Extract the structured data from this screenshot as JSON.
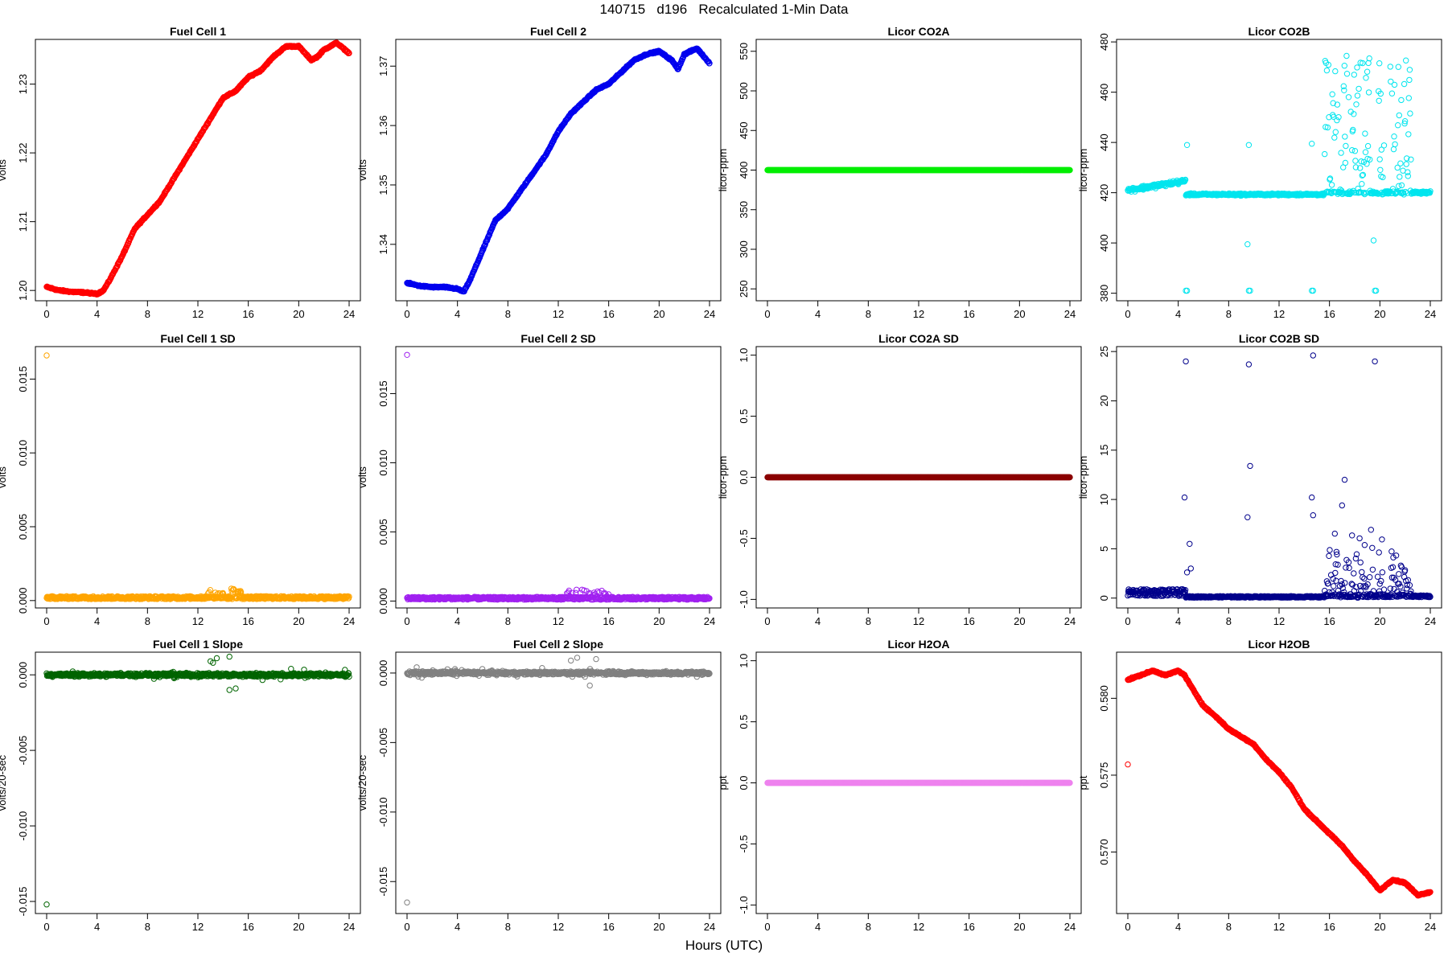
{
  "figure": {
    "title": "140715   d196   Recalculated 1-Min Data",
    "xlabel": "Hours (UTC)"
  },
  "chart_data": [
    {
      "type": "scatter",
      "title": "Fuel Cell 1",
      "ylabel": "volts",
      "color": "#ff0000",
      "xlim": [
        0,
        24
      ],
      "xticks": [
        0,
        4,
        8,
        12,
        16,
        20,
        24
      ],
      "ylim": [
        1.1985,
        1.2365
      ],
      "yticks": [
        1.2,
        1.21,
        1.22,
        1.23
      ],
      "ytick_labels": [
        "1.20",
        "1.21",
        "1.22",
        "1.23"
      ],
      "pattern": "trend",
      "x": [
        0,
        1,
        2,
        3,
        4,
        4.5,
        5,
        6,
        7,
        8,
        9,
        10,
        11,
        12,
        13,
        14,
        15,
        16,
        17,
        18,
        19,
        20,
        21,
        21.5,
        22,
        23,
        24
      ],
      "y": [
        1.2005,
        1.2,
        1.1998,
        1.1997,
        1.1995,
        1.2,
        1.2015,
        1.205,
        1.209,
        1.211,
        1.213,
        1.216,
        1.219,
        1.222,
        1.225,
        1.228,
        1.229,
        1.231,
        1.232,
        1.234,
        1.2355,
        1.2355,
        1.2335,
        1.234,
        1.235,
        1.236,
        1.2345
      ]
    },
    {
      "type": "scatter",
      "title": "Fuel Cell 2",
      "ylabel": "volts",
      "color": "#0000ee",
      "xlim": [
        0,
        24
      ],
      "xticks": [
        0,
        4,
        8,
        12,
        16,
        20,
        24
      ],
      "ylim": [
        1.3305,
        1.3745
      ],
      "yticks": [
        1.34,
        1.35,
        1.36,
        1.37
      ],
      "ytick_labels": [
        "1.34",
        "1.35",
        "1.36",
        "1.37"
      ],
      "pattern": "trend",
      "x": [
        0,
        1,
        2,
        3,
        4,
        4.5,
        5,
        6,
        7,
        8,
        9,
        10,
        11,
        12,
        13,
        14,
        15,
        16,
        17,
        18,
        19,
        20,
        21,
        21.5,
        22,
        23,
        24
      ],
      "y": [
        1.3335,
        1.333,
        1.3328,
        1.3328,
        1.3325,
        1.332,
        1.334,
        1.339,
        1.344,
        1.346,
        1.349,
        1.352,
        1.355,
        1.359,
        1.362,
        1.364,
        1.366,
        1.367,
        1.369,
        1.371,
        1.372,
        1.3725,
        1.371,
        1.3695,
        1.372,
        1.373,
        1.3705
      ]
    },
    {
      "type": "scatter",
      "title": "Licor CO2A",
      "ylabel": "licor-ppm",
      "color": "#00ee00",
      "xlim": [
        0,
        24
      ],
      "xticks": [
        0,
        4,
        8,
        12,
        16,
        20,
        24
      ],
      "ylim": [
        235,
        565
      ],
      "yticks": [
        250,
        300,
        350,
        400,
        450,
        500,
        550
      ],
      "ytick_labels": [
        "250",
        "300",
        "350",
        "400",
        "450",
        "500",
        "550"
      ],
      "pattern": "flat",
      "x": [
        0,
        24
      ],
      "y": [
        400,
        400
      ]
    },
    {
      "type": "scatter",
      "title": "Licor CO2B",
      "ylabel": "licor-ppm",
      "color": "#00e5ee",
      "xlim": [
        0,
        24
      ],
      "xticks": [
        0,
        4,
        8,
        12,
        16,
        20,
        24
      ],
      "ylim": [
        377,
        481
      ],
      "yticks": [
        380,
        400,
        420,
        440,
        460,
        480
      ],
      "ytick_labels": [
        "380",
        "400",
        "420",
        "440",
        "460",
        "480"
      ],
      "pattern": "co2b",
      "x": [
        0,
        4,
        4.5,
        8,
        12,
        15.5
      ],
      "y": [
        421,
        425,
        419,
        419,
        419.5,
        420
      ],
      "outliers_x": [
        4.6,
        4.7,
        9.6,
        9.7,
        14.6,
        14.7,
        19.6,
        19.7,
        9.5,
        9.6,
        4.7,
        14.6,
        19.5
      ],
      "outliers_y": [
        381,
        381,
        381,
        381,
        381,
        381,
        381,
        381,
        399.5,
        439,
        439,
        439.5,
        401
      ]
    },
    {
      "type": "scatter",
      "title": "Fuel Cell 1 SD",
      "ylabel": "volts",
      "color": "#ffa500",
      "xlim": [
        0,
        24
      ],
      "xticks": [
        0,
        4,
        8,
        12,
        16,
        20,
        24
      ],
      "ylim": [
        -0.0005,
        0.0172
      ],
      "yticks": [
        0.0,
        0.005,
        0.01,
        0.015
      ],
      "ytick_labels": [
        "0.000",
        "0.005",
        "0.010",
        "0.015"
      ],
      "pattern": "sd",
      "base": 0.0001,
      "spread": 0.0002,
      "bump": [
        12.5,
        15.5,
        0.0006
      ],
      "outliers_x": [
        0
      ],
      "outliers_y": [
        0.0166
      ]
    },
    {
      "type": "scatter",
      "title": "Fuel Cell 2 SD",
      "ylabel": "volts",
      "color": "#a020f0",
      "xlim": [
        0,
        24
      ],
      "xticks": [
        0,
        4,
        8,
        12,
        16,
        20,
        24
      ],
      "ylim": [
        -0.0005,
        0.0184
      ],
      "yticks": [
        0.0,
        0.005,
        0.01,
        0.015
      ],
      "ytick_labels": [
        "0.000",
        "0.005",
        "0.010",
        "0.015"
      ],
      "pattern": "sd",
      "base": 0.0001,
      "spread": 0.0002,
      "bump": [
        12.5,
        16,
        0.0006
      ],
      "outliers_x": [
        0
      ],
      "outliers_y": [
        0.0178
      ]
    },
    {
      "type": "scatter",
      "title": "Licor CO2A SD",
      "ylabel": "licor-ppm",
      "color": "#8b0000",
      "xlim": [
        0,
        24
      ],
      "xticks": [
        0,
        4,
        8,
        12,
        16,
        20,
        24
      ],
      "ylim": [
        -1.07,
        1.07
      ],
      "yticks": [
        -1.0,
        -0.5,
        0.0,
        0.5,
        1.0
      ],
      "ytick_labels": [
        "-1.0",
        "-0.5",
        "0.0",
        "0.5",
        "1.0"
      ],
      "pattern": "flat",
      "x": [
        0,
        24
      ],
      "y": [
        0,
        0
      ]
    },
    {
      "type": "scatter",
      "title": "Licor CO2B SD",
      "ylabel": "licor-ppm",
      "color": "#00008b",
      "xlim": [
        0,
        24
      ],
      "xticks": [
        0,
        4,
        8,
        12,
        16,
        20,
        24
      ],
      "ylim": [
        -1,
        25.5
      ],
      "yticks": [
        0,
        5,
        10,
        15,
        20,
        25
      ],
      "ytick_labels": [
        "0",
        "5",
        "10",
        "15",
        "20",
        "25"
      ],
      "pattern": "co2bsd",
      "outliers_x": [
        4.6,
        9.6,
        14.7,
        19.6,
        4.5,
        9.7,
        14.6,
        9.5,
        14.7,
        4.9,
        4.7,
        5.0,
        17.2,
        17.0
      ],
      "outliers_y": [
        24,
        23.7,
        24.6,
        24,
        10.2,
        13.4,
        10.2,
        8.2,
        8.4,
        5.5,
        2.6,
        3.0,
        12,
        9.4
      ]
    },
    {
      "type": "scatter",
      "title": "Fuel Cell 1 Slope",
      "ylabel": "volts/20-sec",
      "color": "#006400",
      "xlim": [
        0,
        24
      ],
      "xticks": [
        0,
        4,
        8,
        12,
        16,
        20,
        24
      ],
      "ylim": [
        -0.0158,
        0.0015
      ],
      "yticks": [
        -0.015,
        -0.01,
        -0.005,
        0.0
      ],
      "ytick_labels": [
        "-0.015",
        "-0.010",
        "-0.005",
        "0.000"
      ],
      "pattern": "slope",
      "base": 0.0,
      "spread": 0.00018,
      "outliers_x": [
        0,
        13,
        13.5,
        14.5,
        15,
        14.5,
        13.2
      ],
      "outliers_y": [
        -0.0152,
        0.0009,
        0.0011,
        0.0012,
        -0.0009,
        -0.001,
        0.0008
      ]
    },
    {
      "type": "scatter",
      "title": "Fuel Cell 2 Slope",
      "ylabel": "volts/20-sec",
      "color": "#808080",
      "xlim": [
        0,
        24
      ],
      "xticks": [
        0,
        4,
        8,
        12,
        16,
        20,
        24
      ],
      "ylim": [
        -0.0173,
        0.0015
      ],
      "yticks": [
        -0.015,
        -0.01,
        -0.005,
        0.0
      ],
      "ytick_labels": [
        "-0.015",
        "-0.010",
        "-0.005",
        "0.000"
      ],
      "pattern": "slope",
      "base": 0.0,
      "spread": 0.00018,
      "outliers_x": [
        0,
        13,
        13.5,
        14.5,
        15
      ],
      "outliers_y": [
        -0.0165,
        0.0009,
        0.0011,
        -0.0009,
        0.001
      ]
    },
    {
      "type": "scatter",
      "title": "Licor H2OA",
      "ylabel": "ppt",
      "color": "#ee82ee",
      "xlim": [
        0,
        24
      ],
      "xticks": [
        0,
        4,
        8,
        12,
        16,
        20,
        24
      ],
      "ylim": [
        -1.07,
        1.07
      ],
      "yticks": [
        -1.0,
        -0.5,
        0.0,
        0.5,
        1.0
      ],
      "ytick_labels": [
        "-1.0",
        "-0.5",
        "0.0",
        "0.5",
        "1.0"
      ],
      "pattern": "flat",
      "x": [
        0,
        24
      ],
      "y": [
        0,
        0
      ]
    },
    {
      "type": "scatter",
      "title": "Licor H2OB",
      "ylabel": "ppt",
      "color": "#ff0000",
      "xlim": [
        0,
        24
      ],
      "xticks": [
        0,
        4,
        8,
        12,
        16,
        20,
        24
      ],
      "ylim": [
        0.566,
        0.583
      ],
      "yticks": [
        0.57,
        0.575,
        0.58
      ],
      "ytick_labels": [
        "0.570",
        "0.575",
        "0.580"
      ],
      "pattern": "trend",
      "x": [
        0,
        1,
        2,
        3,
        4,
        4.5,
        5,
        6,
        7,
        8,
        9,
        10,
        11,
        12,
        13,
        14,
        15,
        16,
        17,
        18,
        19,
        20,
        21,
        22,
        23,
        24
      ],
      "y": [
        0.5812,
        0.5815,
        0.5818,
        0.5815,
        0.5818,
        0.5815,
        0.5808,
        0.5795,
        0.5788,
        0.578,
        0.5775,
        0.577,
        0.576,
        0.5752,
        0.5742,
        0.5728,
        0.572,
        0.5712,
        0.5704,
        0.5694,
        0.5685,
        0.5675,
        0.5682,
        0.568,
        0.5672,
        0.5674
      ],
      "outliers_x": [
        0
      ],
      "outliers_y": [
        0.5757
      ]
    }
  ]
}
